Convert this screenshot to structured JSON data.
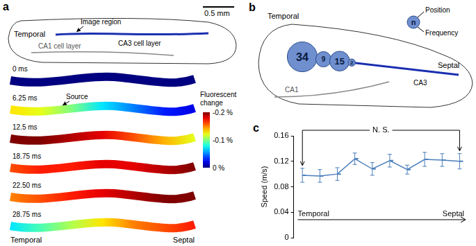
{
  "panels": {
    "a": {
      "letter": "a",
      "slice_labels": {
        "temporal": "Temporal",
        "image_region": "Image region",
        "ca3": "CA3 cell layer",
        "ca1": "CA1 cell layer"
      },
      "scale_bar": "0.5 mm",
      "frames": [
        {
          "time": "0 ms",
          "values": [
            0,
            0,
            0,
            0,
            0,
            0,
            0
          ]
        },
        {
          "time": "6.25 ms",
          "label": "Source",
          "values": [
            -0.13,
            -0.12,
            -0.1,
            -0.07,
            -0.05,
            -0.03,
            -0.02
          ]
        },
        {
          "time": "12.5 ms",
          "values": [
            -0.2,
            -0.2,
            -0.19,
            -0.18,
            -0.16,
            -0.14,
            -0.12
          ]
        },
        {
          "time": "18.75 ms",
          "values": [
            -0.16,
            -0.17,
            -0.17,
            -0.18,
            -0.18,
            -0.19,
            -0.2
          ]
        },
        {
          "time": "22.50 ms",
          "values": [
            -0.15,
            -0.16,
            -0.17,
            -0.18,
            -0.19,
            -0.2,
            -0.2
          ]
        },
        {
          "time": "28.75 ms",
          "values": [
            -0.07,
            -0.09,
            -0.11,
            -0.13,
            -0.15,
            -0.16,
            -0.17
          ]
        }
      ],
      "colorbar": {
        "title": "Fluorescent change",
        "range": [
          -0.2,
          0
        ],
        "ticks": [
          {
            "value": -0.2,
            "label": "-0.2 %"
          },
          {
            "value": -0.1,
            "label": "-0.1 %"
          },
          {
            "value": 0,
            "label": "0 %"
          }
        ]
      },
      "ends": [
        "Temporal",
        "Septal"
      ]
    },
    "b": {
      "letter": "b",
      "temporal": "Temporal",
      "septal": "Septal",
      "ca1": "CA1",
      "ca3": "CA3",
      "key": {
        "symbol": "n",
        "top": "Position",
        "bottom": "Frequency"
      },
      "frequencies": [
        34,
        9,
        15,
        2
      ]
    }
  },
  "chart_data": {
    "type": "line",
    "letter": "c",
    "ylabel": "Speed (m/s)",
    "categories": [
      null,
      null,
      null,
      null,
      null,
      null,
      null,
      null,
      null,
      null
    ],
    "values": [
      0.098,
      0.097,
      0.1,
      0.124,
      0.108,
      0.121,
      0.107,
      0.123,
      0.122,
      0.12
    ],
    "errors": [
      0.011,
      0.01,
      0.01,
      0.009,
      0.01,
      0.01,
      0.007,
      0.011,
      0.01,
      0.012
    ],
    "color": "#4a7ebb",
    "marker": "dash",
    "ylim": [
      0,
      0.16
    ],
    "yticks": [
      0,
      0.04,
      0.08,
      0.12,
      0.16
    ],
    "grid": false,
    "tick_labels": "y",
    "annotations": {
      "bracket": "N. S.",
      "x_start": "Temporal",
      "x_end": "Septal"
    }
  }
}
